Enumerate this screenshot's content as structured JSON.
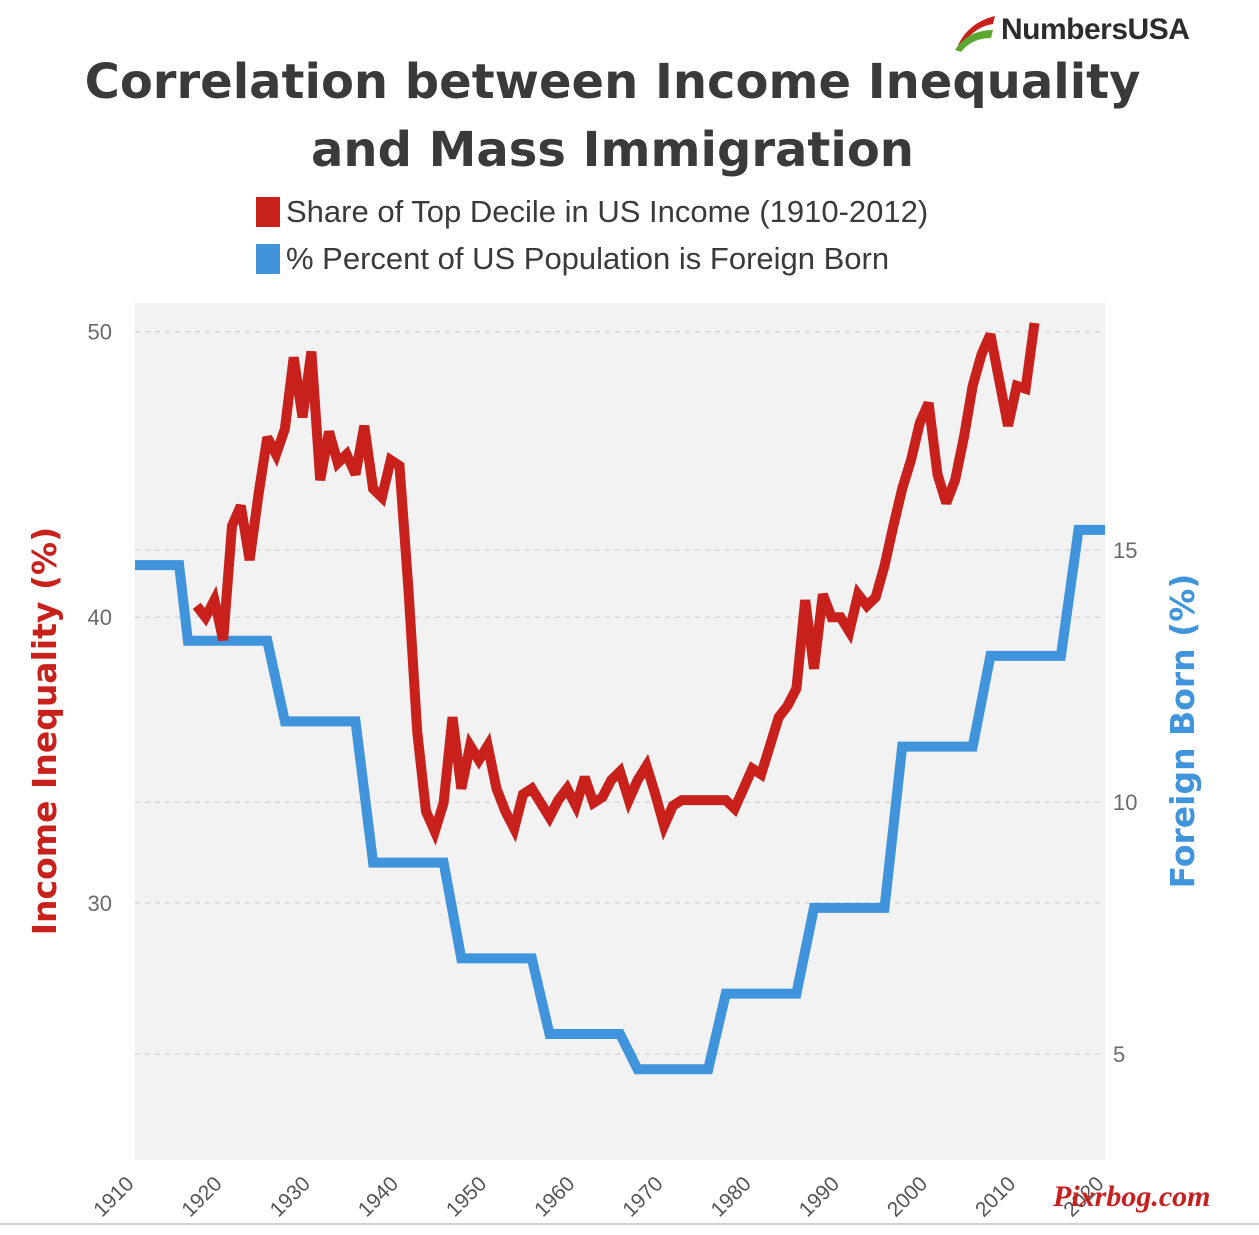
{
  "brand": {
    "name": "NumbersUSA"
  },
  "watermark": "Pixrbog.com",
  "colors": {
    "income_series": "#c8211c",
    "foreign_series": "#3f94dc",
    "plot_background": "#f2f2f2",
    "title": "#3a3a3a"
  },
  "chart_data": {
    "type": "line",
    "title_lines": [
      "Correlation between Income Inequality",
      "and Mass Immigration"
    ],
    "legend_placement": "top",
    "grid": "dashed horizontal",
    "x": {
      "ticks": [
        1910,
        1920,
        1930,
        1940,
        1950,
        1960,
        1970,
        1980,
        1990,
        2000,
        2010,
        2020
      ],
      "range": [
        1910,
        2020
      ]
    },
    "y_left": {
      "label": "Income Inequality (%)",
      "ticks": [
        30,
        40,
        50
      ],
      "range": [
        21,
        51
      ]
    },
    "y_right": {
      "label": "Foreign Born (%)",
      "ticks": [
        5,
        10,
        15
      ],
      "range": [
        2.9,
        19.9
      ]
    },
    "series": [
      {
        "name": "Share of Top Decile in US Income (1910-2012)",
        "axis": "left",
        "step": false,
        "points": [
          [
            1917,
            40.4
          ],
          [
            1918,
            40.0
          ],
          [
            1919,
            40.6
          ],
          [
            1920,
            39.2
          ],
          [
            1921,
            43.2
          ],
          [
            1922,
            43.9
          ],
          [
            1923,
            42.0
          ],
          [
            1924,
            44.3
          ],
          [
            1925,
            46.3
          ],
          [
            1926,
            45.7
          ],
          [
            1927,
            46.6
          ],
          [
            1928,
            49.1
          ],
          [
            1929,
            47.0
          ],
          [
            1930,
            49.3
          ],
          [
            1931,
            44.8
          ],
          [
            1932,
            46.5
          ],
          [
            1933,
            45.4
          ],
          [
            1934,
            45.7
          ],
          [
            1935,
            45.0
          ],
          [
            1936,
            46.7
          ],
          [
            1937,
            44.5
          ],
          [
            1938,
            44.2
          ],
          [
            1939,
            45.5
          ],
          [
            1940,
            45.3
          ],
          [
            1941,
            41.0
          ],
          [
            1942,
            36.0
          ],
          [
            1943,
            33.2
          ],
          [
            1944,
            32.5
          ],
          [
            1945,
            33.5
          ],
          [
            1946,
            36.5
          ],
          [
            1947,
            34.0
          ],
          [
            1948,
            35.5
          ],
          [
            1949,
            35.0
          ],
          [
            1950,
            35.5
          ],
          [
            1951,
            34.0
          ],
          [
            1952,
            33.2
          ],
          [
            1953,
            32.6
          ],
          [
            1954,
            33.8
          ],
          [
            1955,
            34.0
          ],
          [
            1956,
            33.5
          ],
          [
            1957,
            33.0
          ],
          [
            1958,
            33.6
          ],
          [
            1959,
            34.0
          ],
          [
            1960,
            33.4
          ],
          [
            1961,
            34.4
          ],
          [
            1962,
            33.5
          ],
          [
            1963,
            33.7
          ],
          [
            1964,
            34.3
          ],
          [
            1965,
            34.6
          ],
          [
            1966,
            33.6
          ],
          [
            1967,
            34.3
          ],
          [
            1968,
            34.8
          ],
          [
            1969,
            33.8
          ],
          [
            1970,
            32.7
          ],
          [
            1971,
            33.4
          ],
          [
            1972,
            33.6
          ],
          [
            1973,
            33.6
          ],
          [
            1974,
            33.6
          ],
          [
            1975,
            33.6
          ],
          [
            1976,
            33.6
          ],
          [
            1977,
            33.6
          ],
          [
            1978,
            33.3
          ],
          [
            1979,
            34.0
          ],
          [
            1980,
            34.7
          ],
          [
            1981,
            34.5
          ],
          [
            1982,
            35.5
          ],
          [
            1983,
            36.5
          ],
          [
            1984,
            36.9
          ],
          [
            1985,
            37.5
          ],
          [
            1986,
            40.6
          ],
          [
            1987,
            38.2
          ],
          [
            1988,
            40.8
          ],
          [
            1989,
            40.0
          ],
          [
            1990,
            40.0
          ],
          [
            1991,
            39.5
          ],
          [
            1992,
            40.8
          ],
          [
            1993,
            40.4
          ],
          [
            1994,
            40.7
          ],
          [
            1995,
            41.8
          ],
          [
            1996,
            43.2
          ],
          [
            1997,
            44.5
          ],
          [
            1998,
            45.5
          ],
          [
            1999,
            46.8
          ],
          [
            2000,
            47.5
          ],
          [
            2001,
            45.0
          ],
          [
            2002,
            44.0
          ],
          [
            2003,
            44.8
          ],
          [
            2004,
            46.3
          ],
          [
            2005,
            48.1
          ],
          [
            2006,
            49.2
          ],
          [
            2007,
            49.9
          ],
          [
            2008,
            48.3
          ],
          [
            2009,
            46.7
          ],
          [
            2010,
            48.1
          ],
          [
            2011,
            48.0
          ],
          [
            2012,
            50.3
          ]
        ]
      },
      {
        "name": "% Percent of US Population is Foreign Born",
        "axis": "right",
        "step": true,
        "points": [
          [
            1910,
            14.7
          ],
          [
            1915,
            14.7
          ],
          [
            1916,
            13.2
          ],
          [
            1925,
            13.2
          ],
          [
            1927,
            11.6
          ],
          [
            1935,
            11.6
          ],
          [
            1937,
            8.8
          ],
          [
            1945,
            8.8
          ],
          [
            1947,
            6.9
          ],
          [
            1955,
            6.9
          ],
          [
            1957,
            5.4
          ],
          [
            1965,
            5.4
          ],
          [
            1967,
            4.7
          ],
          [
            1975,
            4.7
          ],
          [
            1977,
            6.2
          ],
          [
            1985,
            6.2
          ],
          [
            1987,
            7.9
          ],
          [
            1995,
            7.9
          ],
          [
            1997,
            11.1
          ],
          [
            2005,
            11.1
          ],
          [
            2007,
            12.9
          ],
          [
            2015,
            12.9
          ],
          [
            2017,
            15.4
          ],
          [
            2020,
            15.4
          ]
        ]
      }
    ]
  }
}
